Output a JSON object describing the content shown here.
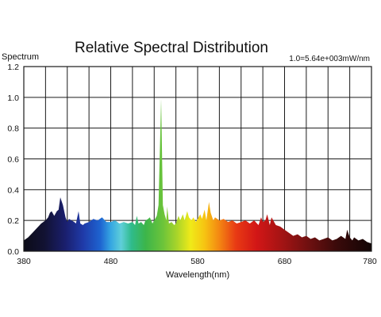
{
  "chart_data": {
    "type": "area",
    "title": "Relative Spectral Distribution",
    "ylabel": "Spectrum",
    "xlabel": "Wavelength(nm)",
    "annotation": "1.0=5.64e+003mW/nm",
    "xlim": [
      380,
      780
    ],
    "ylim": [
      0,
      1.2
    ],
    "x_ticks": [
      380,
      480,
      580,
      680,
      780
    ],
    "y_ticks": [
      0.0,
      0.2,
      0.4,
      0.6,
      0.8,
      1.0,
      1.2
    ],
    "x_tick_labels": [
      "380",
      "480",
      "580",
      "680",
      "780"
    ],
    "y_tick_labels": [
      "0.0",
      "0.2",
      "0.4",
      "0.6",
      "0.8",
      "1.0",
      "1.2"
    ],
    "grid": true,
    "fill": "visible-spectrum colored",
    "series": [
      {
        "x": [
          380,
          385,
          390,
          395,
          400,
          405,
          408,
          410,
          412,
          415,
          418,
          420,
          422,
          425,
          428,
          430,
          432,
          435,
          438,
          440,
          443,
          445,
          448,
          450,
          455,
          460,
          465,
          470,
          475,
          480,
          485,
          490,
          495,
          500,
          505,
          508,
          510,
          512,
          515,
          518,
          520,
          523,
          525,
          528,
          530,
          533,
          535,
          538,
          540,
          542,
          544,
          545,
          547,
          550,
          553,
          555,
          558,
          560,
          563,
          565,
          568,
          570,
          573,
          575,
          578,
          580,
          583,
          585,
          588,
          590,
          593,
          595,
          598,
          600,
          605,
          610,
          615,
          620,
          625,
          630,
          635,
          640,
          645,
          650,
          653,
          655,
          658,
          660,
          663,
          665,
          668,
          670,
          675,
          680,
          685,
          690,
          695,
          700,
          705,
          710,
          715,
          720,
          725,
          730,
          735,
          740,
          745,
          750,
          752,
          755,
          758,
          760,
          765,
          770,
          775,
          780
        ],
        "y": [
          0.07,
          0.09,
          0.12,
          0.15,
          0.18,
          0.2,
          0.22,
          0.25,
          0.26,
          0.23,
          0.26,
          0.27,
          0.35,
          0.3,
          0.22,
          0.19,
          0.21,
          0.2,
          0.19,
          0.18,
          0.26,
          0.18,
          0.17,
          0.18,
          0.19,
          0.21,
          0.2,
          0.22,
          0.19,
          0.19,
          0.2,
          0.18,
          0.19,
          0.18,
          0.19,
          0.17,
          0.23,
          0.18,
          0.19,
          0.17,
          0.2,
          0.21,
          0.22,
          0.18,
          0.2,
          0.23,
          0.3,
          0.99,
          0.3,
          0.24,
          0.2,
          0.29,
          0.18,
          0.19,
          0.17,
          0.18,
          0.23,
          0.2,
          0.24,
          0.2,
          0.26,
          0.22,
          0.2,
          0.22,
          0.19,
          0.21,
          0.24,
          0.21,
          0.27,
          0.2,
          0.32,
          0.25,
          0.2,
          0.22,
          0.2,
          0.21,
          0.19,
          0.2,
          0.18,
          0.19,
          0.2,
          0.18,
          0.2,
          0.17,
          0.22,
          0.19,
          0.2,
          0.24,
          0.17,
          0.22,
          0.19,
          0.17,
          0.16,
          0.14,
          0.12,
          0.1,
          0.11,
          0.09,
          0.1,
          0.08,
          0.09,
          0.07,
          0.08,
          0.09,
          0.07,
          0.08,
          0.1,
          0.08,
          0.14,
          0.09,
          0.07,
          0.09,
          0.07,
          0.08,
          0.06,
          0.05
        ]
      }
    ]
  }
}
